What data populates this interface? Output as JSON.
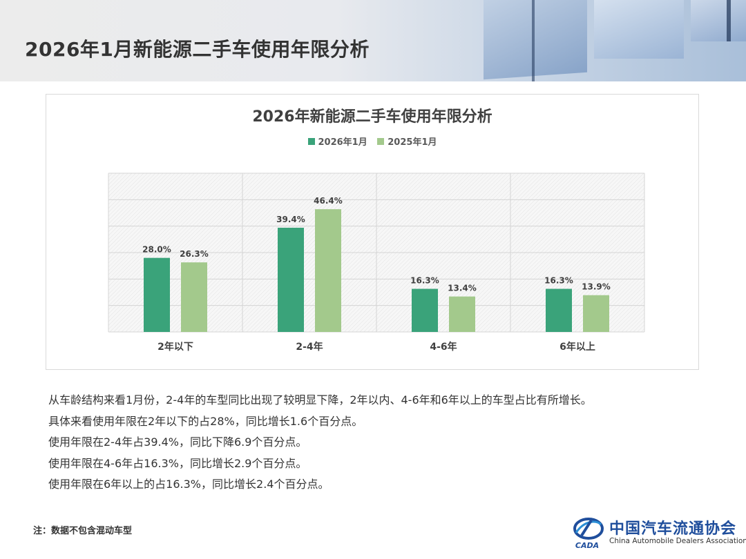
{
  "header": {
    "title": "2026年1月新能源二手车使用年限分析"
  },
  "chart_data": {
    "type": "bar",
    "title": "2026年新能源二手车使用年限分析",
    "categories": [
      "2年以下",
      "2-4年",
      "4-6年",
      "6年以上"
    ],
    "series": [
      {
        "name": "2026年1月",
        "values": [
          28.0,
          39.4,
          16.3,
          16.3
        ],
        "labels": [
          "28.0%",
          "39.4%",
          "16.3%",
          "16.3%"
        ],
        "color": "#3aa37a"
      },
      {
        "name": "2025年1月",
        "values": [
          26.3,
          46.4,
          13.4,
          13.9
        ],
        "labels": [
          "26.3%",
          "46.4%",
          "13.4%",
          "13.9%"
        ],
        "color": "#a3c98c"
      }
    ],
    "ylim": [
      0,
      60
    ],
    "grid": true,
    "legend_position": "top"
  },
  "body": {
    "lines": [
      "从车龄结构来看1月份，2-4年的车型同比出现了较明显下降，2年以内、4-6年和6年以上的车型占比有所增长。",
      "具体来看使用年限在2年以下的占28%，同比增长1.6个百分点。",
      "使用年限在2-4年占39.4%，同比下降6.9个百分点。",
      "使用年限在4-6年占16.3%，同比增长2.9个百分点。",
      "使用年限在6年以上的占16.3%，同比增长2.4个百分点。"
    ]
  },
  "footer": {
    "note": "注：数据不包含混动车型",
    "logo_cn": "中国汽车流通协会",
    "logo_en": "China Automobile Dealers Association",
    "logo_mark_text": "CADA"
  }
}
